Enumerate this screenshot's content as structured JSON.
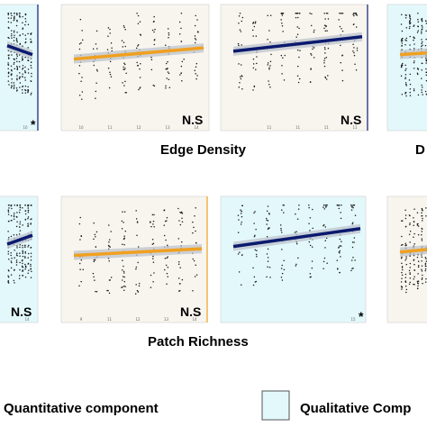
{
  "colors": {
    "quantitative_bg": "#f7f5ee",
    "qualitative_bg": "#e3f8fb",
    "orange_line": "#f0a020",
    "blue_line": "#0b1a6e",
    "band": "#bdc3cc",
    "points": "#1a1a1a"
  },
  "row_titles": [
    "Edge Density",
    "Patch Richness"
  ],
  "left_cut_text": [
    "D"
  ],
  "legend": {
    "quantitative_label": "Quantitative component",
    "qualitative_label": "Qualitative Comp"
  },
  "chart_data": [
    {
      "type": "scatter",
      "panel": "edge-density-1",
      "component": "qualitative",
      "annotation": "*",
      "xlim": [
        0,
        10
      ],
      "ylim": [
        0,
        10
      ],
      "fit": {
        "x": [
          0,
          10
        ],
        "y": [
          6.8,
          6.0
        ],
        "color": "blue"
      },
      "x_ticks": [
        "",
        "10"
      ]
    },
    {
      "type": "scatter",
      "panel": "edge-density-2",
      "component": "quantitative",
      "annotation": "N.S",
      "xlim": [
        0,
        10
      ],
      "ylim": [
        0,
        10
      ],
      "fit": {
        "x": [
          0,
          10
        ],
        "y": [
          5.6,
          6.6
        ],
        "color": "orange"
      },
      "x_ticks": [
        "10",
        "11",
        "12",
        "13",
        "14"
      ]
    },
    {
      "type": "scatter",
      "panel": "edge-density-3",
      "component": "quantitative",
      "annotation": "N.S",
      "xlim": [
        0,
        10
      ],
      "ylim": [
        0,
        10
      ],
      "fit": {
        "x": [
          0,
          10
        ],
        "y": [
          6.3,
          7.6
        ],
        "color": "blue"
      },
      "x_ticks": [
        "",
        "11",
        "11",
        "11",
        "11"
      ]
    },
    {
      "type": "scatter",
      "panel": "edge-density-4",
      "component": "qualitative",
      "annotation": "",
      "xlim": [
        0,
        10
      ],
      "ylim": [
        0,
        10
      ],
      "fit": {
        "x": [
          0,
          10
        ],
        "y": [
          6.0,
          6.2
        ],
        "color": "orange"
      },
      "x_ticks": []
    },
    {
      "type": "scatter",
      "panel": "patch-richness-1",
      "component": "qualitative",
      "annotation": "N.S",
      "xlim": [
        0,
        10
      ],
      "ylim": [
        0,
        10
      ],
      "fit": {
        "x": [
          0,
          10
        ],
        "y": [
          6.2,
          7.0
        ],
        "color": "blue"
      },
      "x_ticks": [
        "14"
      ]
    },
    {
      "type": "scatter",
      "panel": "patch-richness-2",
      "component": "quantitative",
      "annotation": "N.S",
      "xlim": [
        0,
        10
      ],
      "ylim": [
        0,
        10
      ],
      "fit": {
        "x": [
          0,
          10
        ],
        "y": [
          5.2,
          5.8
        ],
        "color": "orange"
      },
      "x_ticks": [
        "9",
        "11",
        "12",
        "13",
        "14"
      ]
    },
    {
      "type": "scatter",
      "panel": "patch-richness-3",
      "component": "qualitative",
      "annotation": "*",
      "xlim": [
        0,
        10
      ],
      "ylim": [
        0,
        10
      ],
      "fit": {
        "x": [
          0,
          10
        ],
        "y": [
          6.0,
          7.6
        ],
        "color": "blue"
      },
      "x_ticks": [
        "",
        "",
        "",
        "",
        "15"
      ]
    },
    {
      "type": "scatter",
      "panel": "patch-richness-4",
      "component": "quantitative",
      "annotation": "",
      "xlim": [
        0,
        10
      ],
      "ylim": [
        0,
        10
      ],
      "fit": {
        "x": [
          0,
          10
        ],
        "y": [
          5.5,
          5.8
        ],
        "color": "orange"
      },
      "x_ticks": []
    }
  ]
}
